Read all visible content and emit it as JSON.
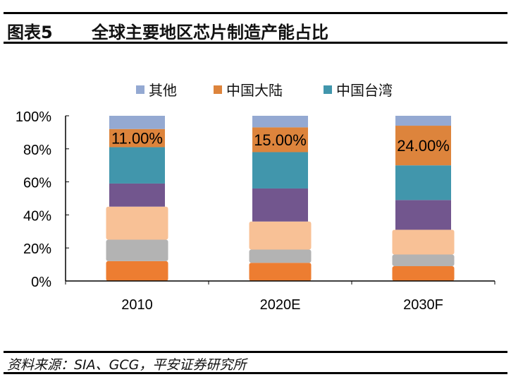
{
  "header": {
    "figure_label": "图表5",
    "title": "全球主要地区芯片制造产能占比"
  },
  "footer": {
    "source": "资料来源：SIA、GCG，平安证券研究所"
  },
  "chart_data": {
    "type": "bar",
    "stacked": true,
    "title": "全球主要地区芯片制造产能占比",
    "xlabel": "",
    "ylabel": "",
    "ylim": [
      0,
      100
    ],
    "yticks": [
      "0%",
      "20%",
      "40%",
      "60%",
      "80%",
      "100%"
    ],
    "ytick_values": [
      0,
      20,
      40,
      60,
      80,
      100
    ],
    "grid": false,
    "legend_position": "top-center",
    "categories": [
      "2010",
      "2020E",
      "2030F"
    ],
    "series": [
      {
        "name": "",
        "color": "#ED7D31",
        "values": [
          12,
          11,
          9
        ],
        "in_legend": false,
        "style": "wide"
      },
      {
        "name": "",
        "color": "#B3B3B3",
        "values": [
          13,
          8,
          7
        ],
        "in_legend": false,
        "style": "wide"
      },
      {
        "name": "",
        "color": "#F8C196",
        "values": [
          20,
          17,
          15
        ],
        "in_legend": false,
        "style": "wide"
      },
      {
        "name": "",
        "color": "#72568E",
        "values": [
          14,
          20,
          18
        ],
        "in_legend": false,
        "style": "narrow"
      },
      {
        "name": "中国台湾",
        "color": "#4196AC",
        "values": [
          22,
          22,
          21
        ],
        "in_legend": true,
        "style": "narrow"
      },
      {
        "name": "中国大陆",
        "color": "#DD843C",
        "values": [
          11,
          15,
          24
        ],
        "in_legend": true,
        "style": "narrow",
        "data_labels": [
          "11.00%",
          "15.00%",
          "24.00%"
        ]
      },
      {
        "name": "其他",
        "color": "#94A9D2",
        "values": [
          8,
          7,
          6
        ],
        "in_legend": true,
        "style": "narrow"
      }
    ],
    "legend": [
      {
        "name": "其他",
        "color": "#94A9D2"
      },
      {
        "name": "中国大陆",
        "color": "#DD843C"
      },
      {
        "name": "中国台湾",
        "color": "#4196AC"
      }
    ]
  }
}
